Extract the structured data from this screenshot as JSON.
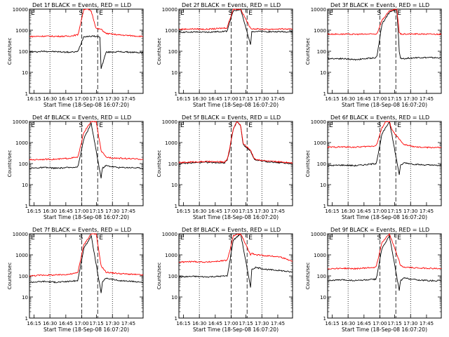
{
  "chart_data": [
    {
      "type": "line",
      "title": "Det 1f BLACK = Events, RED = LLD",
      "xlabel": "Start Time (18-Sep-08 16:07:20)",
      "ylabel": "Counts/sec",
      "yscale": "log",
      "ylim": [
        1,
        10000
      ],
      "xlim": [
        8,
        100
      ],
      "x_ticks": [
        "16:15",
        "16:30",
        "16:45",
        "17:00",
        "17:15",
        "17:30",
        "17:45"
      ],
      "y_ticks": [
        "1",
        "10",
        "100",
        "1000",
        "10000"
      ],
      "markers": [
        "S",
        "E"
      ],
      "series": [
        {
          "color": "#000000",
          "x": [
            8,
            20,
            30,
            40,
            47,
            48,
            50,
            52,
            60,
            65,
            66,
            70,
            80,
            90,
            100
          ],
          "y": [
            90,
            100,
            95,
            90,
            95,
            130,
            260,
            500,
            520,
            480,
            15,
            90,
            95,
            90,
            85
          ]
        },
        {
          "color": "#ff0000",
          "x": [
            8,
            20,
            30,
            40,
            47,
            48,
            50,
            52,
            55,
            58,
            62,
            66,
            70,
            80,
            90,
            100
          ],
          "y": [
            500,
            520,
            510,
            520,
            600,
            900,
            3000,
            10000,
            10000,
            8000,
            1200,
            1100,
            700,
            600,
            550,
            500
          ]
        }
      ]
    },
    {
      "type": "line",
      "title": "Det 2f BLACK = Events, RED = LLD",
      "xlabel": "Start Time (18-Sep-08 16:07:20)",
      "ylabel": "Counts/sec",
      "yscale": "log",
      "ylim": [
        1,
        10000
      ],
      "xlim": [
        8,
        100
      ],
      "x_ticks": [
        "16:15",
        "16:30",
        "16:45",
        "17:00",
        "17:15",
        "17:30",
        "17:45"
      ],
      "y_ticks": [
        "1",
        "10",
        "100",
        "1000",
        "10000"
      ],
      "markers": [
        "S",
        "E"
      ],
      "series": [
        {
          "color": "#000000",
          "x": [
            8,
            20,
            30,
            40,
            47,
            48,
            52,
            58,
            66,
            67,
            70,
            80,
            90,
            100
          ],
          "y": [
            800,
            820,
            800,
            850,
            900,
            1500,
            8000,
            10000,
            200,
            900,
            880,
            850,
            850,
            840
          ]
        },
        {
          "color": "#ff0000",
          "x": [
            8,
            20,
            30,
            40,
            47,
            48,
            52,
            58,
            66,
            67,
            70,
            80,
            90,
            100
          ],
          "y": [
            1100,
            1150,
            1100,
            1200,
            1300,
            2000,
            10000,
            10000,
            1200,
            1200,
            1150,
            1100,
            1150,
            1100
          ]
        }
      ]
    },
    {
      "type": "line",
      "title": "Det 3f BLACK = Events, RED = LLD",
      "xlabel": "Start Time (18-Sep-08 16:07:20)",
      "ylabel": "Counts/sec",
      "yscale": "log",
      "ylim": [
        1,
        10000
      ],
      "xlim": [
        8,
        100
      ],
      "x_ticks": [
        "16:15",
        "16:30",
        "16:45",
        "17:00",
        "17:15",
        "17:30",
        "17:45"
      ],
      "y_ticks": [
        "1",
        "10",
        "100",
        "1000",
        "10000"
      ],
      "markers": [
        "S",
        "E"
      ],
      "series": [
        {
          "color": "#000000",
          "x": [
            8,
            20,
            30,
            40,
            47,
            48,
            52,
            58,
            64,
            66,
            67,
            70,
            80,
            90,
            100
          ],
          "y": [
            45,
            45,
            40,
            45,
            50,
            60,
            2000,
            7000,
            10000,
            100,
            45,
            45,
            50,
            50,
            48
          ]
        },
        {
          "color": "#ff0000",
          "x": [
            8,
            20,
            30,
            40,
            47,
            48,
            52,
            58,
            64,
            66,
            67,
            70,
            80,
            90,
            100
          ],
          "y": [
            650,
            650,
            640,
            650,
            660,
            700,
            3000,
            8000,
            10000,
            800,
            650,
            650,
            660,
            650,
            650
          ]
        }
      ]
    },
    {
      "type": "line",
      "title": "Det 4f BLACK = Events, RED = LLD",
      "xlabel": "Start Time (18-Sep-08 16:07:20)",
      "ylabel": "Counts/sec",
      "yscale": "log",
      "ylim": [
        1,
        10000
      ],
      "xlim": [
        8,
        100
      ],
      "x_ticks": [
        "16:15",
        "16:30",
        "16:45",
        "17:00",
        "17:15",
        "17:30",
        "17:45"
      ],
      "y_ticks": [
        "1",
        "10",
        "100",
        "1000",
        "10000"
      ],
      "markers": [
        "S",
        "E"
      ],
      "series": [
        {
          "color": "#000000",
          "x": [
            8,
            20,
            30,
            40,
            47,
            48,
            52,
            58,
            66,
            67,
            70,
            80,
            90,
            100
          ],
          "y": [
            60,
            65,
            60,
            65,
            70,
            110,
            1500,
            8000,
            20,
            60,
            80,
            65,
            65,
            60
          ]
        },
        {
          "color": "#ff0000",
          "x": [
            8,
            20,
            30,
            40,
            47,
            48,
            52,
            58,
            62,
            66,
            70,
            80,
            90,
            100
          ],
          "y": [
            150,
            160,
            160,
            180,
            200,
            300,
            3000,
            10000,
            10000,
            400,
            200,
            180,
            170,
            160
          ]
        }
      ]
    },
    {
      "type": "line",
      "title": "Det 5f BLACK = Events, RED = LLD",
      "xlabel": "Start Time (18-Sep-08 16:07:20)",
      "ylabel": "Counts/sec",
      "yscale": "log",
      "ylim": [
        1,
        10000
      ],
      "xlim": [
        8,
        100
      ],
      "x_ticks": [
        "16:15",
        "16:30",
        "16:45",
        "17:00",
        "17:15",
        "17:30",
        "17:45"
      ],
      "y_ticks": [
        "1",
        "10",
        "100",
        "1000",
        "10000"
      ],
      "markers": [
        "S",
        "E"
      ],
      "series": [
        {
          "color": "#000000",
          "x": [
            8,
            20,
            30,
            40,
            45,
            47,
            49,
            50,
            52,
            55,
            58,
            60,
            64,
            66,
            68,
            70,
            80,
            90,
            100
          ],
          "y": [
            100,
            110,
            115,
            110,
            110,
            150,
            400,
            1000,
            4000,
            10000,
            6000,
            800,
            500,
            400,
            200,
            150,
            120,
            110,
            100
          ]
        },
        {
          "color": "#ff0000",
          "x": [
            8,
            20,
            30,
            40,
            45,
            47,
            49,
            50,
            52,
            55,
            58,
            60,
            64,
            66,
            68,
            70,
            80,
            90,
            100
          ],
          "y": [
            110,
            120,
            125,
            120,
            120,
            160,
            450,
            1100,
            4500,
            10000,
            6500,
            900,
            550,
            450,
            220,
            160,
            130,
            120,
            110
          ]
        }
      ]
    },
    {
      "type": "line",
      "title": "Det 6f BLACK = Events, RED = LLD",
      "xlabel": "Start Time (18-Sep-08 16:07:20)",
      "ylabel": "Counts/sec",
      "yscale": "log",
      "ylim": [
        1,
        10000
      ],
      "xlim": [
        8,
        100
      ],
      "x_ticks": [
        "16:15",
        "16:30",
        "16:45",
        "17:00",
        "17:15",
        "17:30",
        "17:45"
      ],
      "y_ticks": [
        "1",
        "10",
        "100",
        "1000",
        "10000"
      ],
      "markers": [
        "S",
        "E"
      ],
      "series": [
        {
          "color": "#000000",
          "x": [
            8,
            20,
            30,
            40,
            47,
            48,
            52,
            58,
            66,
            67,
            70,
            80,
            90,
            100
          ],
          "y": [
            80,
            85,
            80,
            90,
            100,
            150,
            2500,
            10000,
            30,
            80,
            110,
            90,
            85,
            80
          ]
        },
        {
          "color": "#ff0000",
          "x": [
            8,
            20,
            30,
            40,
            47,
            48,
            52,
            55,
            58,
            60,
            64,
            68,
            70,
            80,
            90,
            100
          ],
          "y": [
            600,
            620,
            600,
            650,
            700,
            900,
            5000,
            10000,
            10000,
            4000,
            2000,
            1000,
            800,
            600,
            580,
            580
          ]
        }
      ]
    },
    {
      "type": "line",
      "title": "Det 7f BLACK = Events, RED = LLD",
      "xlabel": "Start Time (18-Sep-08 16:07:20)",
      "ylabel": "Counts/sec",
      "yscale": "log",
      "ylim": [
        1,
        10000
      ],
      "xlim": [
        8,
        100
      ],
      "x_ticks": [
        "16:15",
        "16:30",
        "16:45",
        "17:00",
        "17:15",
        "17:30",
        "17:45"
      ],
      "y_ticks": [
        "1",
        "10",
        "100",
        "1000",
        "10000"
      ],
      "markers": [
        "S",
        "E"
      ],
      "series": [
        {
          "color": "#000000",
          "x": [
            8,
            20,
            30,
            40,
            47,
            48,
            52,
            58,
            66,
            67,
            70,
            80,
            90,
            100
          ],
          "y": [
            50,
            55,
            50,
            55,
            60,
            110,
            2000,
            8000,
            15,
            50,
            80,
            60,
            55,
            50
          ]
        },
        {
          "color": "#ff0000",
          "x": [
            8,
            20,
            30,
            40,
            47,
            48,
            52,
            58,
            62,
            66,
            70,
            80,
            90,
            100
          ],
          "y": [
            100,
            110,
            110,
            120,
            140,
            250,
            3000,
            10000,
            10000,
            300,
            150,
            130,
            120,
            110
          ]
        }
      ]
    },
    {
      "type": "line",
      "title": "Det 8f BLACK = Events, RED = LLD",
      "xlabel": "Start Time (18-Sep-08 16:07:20)",
      "ylabel": "Counts/sec",
      "yscale": "log",
      "ylim": [
        1,
        10000
      ],
      "xlim": [
        8,
        100
      ],
      "x_ticks": [
        "16:15",
        "16:30",
        "16:45",
        "17:00",
        "17:15",
        "17:30",
        "17:45"
      ],
      "y_ticks": [
        "1",
        "10",
        "100",
        "1000",
        "10000"
      ],
      "markers": [
        "S",
        "E"
      ],
      "series": [
        {
          "color": "#000000",
          "x": [
            8,
            20,
            30,
            40,
            47,
            48,
            52,
            58,
            66,
            67,
            70,
            80,
            90,
            100
          ],
          "y": [
            90,
            95,
            90,
            95,
            100,
            180,
            5000,
            10000,
            30,
            200,
            250,
            200,
            180,
            150
          ]
        },
        {
          "color": "#ff0000",
          "x": [
            8,
            20,
            30,
            40,
            47,
            48,
            52,
            58,
            66,
            67,
            70,
            80,
            90,
            100
          ],
          "y": [
            450,
            480,
            450,
            500,
            550,
            800,
            8000,
            10000,
            1000,
            1200,
            1000,
            900,
            800,
            500
          ]
        }
      ]
    },
    {
      "type": "line",
      "title": "Det 9f BLACK = Events, RED = LLD",
      "xlabel": "Start Time (18-Sep-08 16:07:20)",
      "ylabel": "Counts/sec",
      "yscale": "log",
      "ylim": [
        1,
        10000
      ],
      "xlim": [
        8,
        100
      ],
      "x_ticks": [
        "16:15",
        "16:30",
        "16:45",
        "17:00",
        "17:15",
        "17:30",
        "17:45"
      ],
      "y_ticks": [
        "1",
        "10",
        "100",
        "1000",
        "10000"
      ],
      "markers": [
        "S",
        "E"
      ],
      "series": [
        {
          "color": "#000000",
          "x": [
            8,
            20,
            30,
            40,
            47,
            48,
            52,
            58,
            66,
            67,
            70,
            80,
            90,
            100
          ],
          "y": [
            60,
            65,
            60,
            65,
            70,
            110,
            2000,
            8000,
            20,
            60,
            80,
            65,
            60,
            60
          ]
        },
        {
          "color": "#ff0000",
          "x": [
            8,
            20,
            30,
            40,
            47,
            48,
            52,
            58,
            66,
            67,
            70,
            80,
            90,
            100
          ],
          "y": [
            220,
            230,
            220,
            240,
            260,
            400,
            4000,
            10000,
            500,
            300,
            260,
            240,
            230,
            220
          ]
        }
      ]
    }
  ]
}
